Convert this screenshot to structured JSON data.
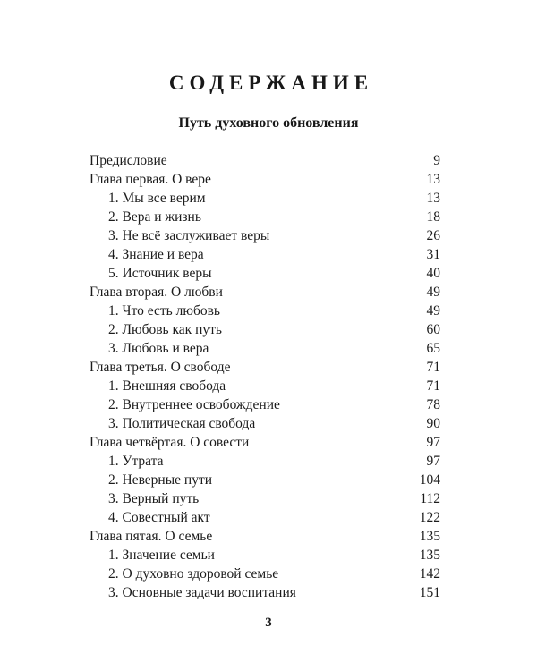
{
  "page": {
    "title": "СОДЕРЖАНИЕ",
    "subtitle": "Путь духовного обновления",
    "footer_page_number": "3"
  },
  "colors": {
    "background": "#ffffff",
    "text": "#1c1c1c"
  },
  "toc_entries": [
    {
      "label": "Предисловие",
      "page": "9",
      "indent": 0
    },
    {
      "label": "Глава первая. О вере",
      "page": "13",
      "indent": 0
    },
    {
      "label": "1. Мы все верим",
      "page": "13",
      "indent": 1
    },
    {
      "label": "2. Вера и жизнь",
      "page": "18",
      "indent": 1
    },
    {
      "label": "3. Не всё заслуживает веры",
      "page": "26",
      "indent": 1
    },
    {
      "label": "4. Знание и вера",
      "page": "31",
      "indent": 1
    },
    {
      "label": "5. Источник веры",
      "page": "40",
      "indent": 1
    },
    {
      "label": "Глава вторая. О любви",
      "page": "49",
      "indent": 0
    },
    {
      "label": "1. Что есть любовь",
      "page": "49",
      "indent": 1
    },
    {
      "label": "2. Любовь как путь",
      "page": "60",
      "indent": 1
    },
    {
      "label": "3. Любовь и вера",
      "page": "65",
      "indent": 1
    },
    {
      "label": "Глава третья. О свободе",
      "page": "71",
      "indent": 0
    },
    {
      "label": "1. Внешняя свобода",
      "page": "71",
      "indent": 1
    },
    {
      "label": "2. Внутреннее освобождение",
      "page": "78",
      "indent": 1
    },
    {
      "label": "3. Политическая свобода",
      "page": "90",
      "indent": 1
    },
    {
      "label": "Глава четвёртая. О совести",
      "page": "97",
      "indent": 0
    },
    {
      "label": "1. Утрата",
      "page": "97",
      "indent": 1
    },
    {
      "label": "2. Неверные пути",
      "page": "104",
      "indent": 1
    },
    {
      "label": "3. Верный путь",
      "page": "112",
      "indent": 1
    },
    {
      "label": "4. Совестный акт",
      "page": "122",
      "indent": 1
    },
    {
      "label": "Глава пятая. О семье",
      "page": "135",
      "indent": 0
    },
    {
      "label": "1. Значение семьи",
      "page": "135",
      "indent": 1
    },
    {
      "label": "2. О духовно здоровой семье",
      "page": "142",
      "indent": 1
    },
    {
      "label": "3. Основные задачи воспитания",
      "page": "151",
      "indent": 1
    }
  ]
}
